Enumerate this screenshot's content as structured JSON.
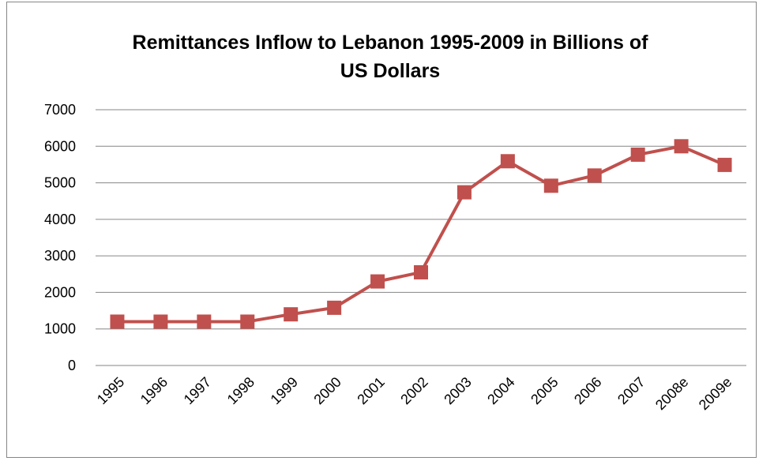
{
  "chart_data": {
    "type": "line",
    "title_lines": [
      "Remittances Inflow to Lebanon 1995-2009 in Billions of",
      "US Dollars"
    ],
    "xlabel": "",
    "ylabel": "",
    "categories": [
      "1995",
      "1996",
      "1997",
      "1998",
      "1999",
      "2000",
      "2001",
      "2002",
      "2003",
      "2004",
      "2005",
      "2006",
      "2007",
      "2008e",
      "2009e"
    ],
    "y_ticks": [
      "0",
      "1000",
      "2000",
      "3000",
      "4000",
      "5000",
      "6000",
      "7000"
    ],
    "ylim": [
      0,
      7000
    ],
    "grid": true,
    "legend": "none",
    "series": [
      {
        "values": [
          1200,
          1200,
          1200,
          1200,
          1400,
          1580,
          2300,
          2550,
          4740,
          5590,
          4920,
          5200,
          5770,
          6000,
          5490
        ],
        "color": "#c0504d",
        "marker": "square"
      }
    ]
  }
}
